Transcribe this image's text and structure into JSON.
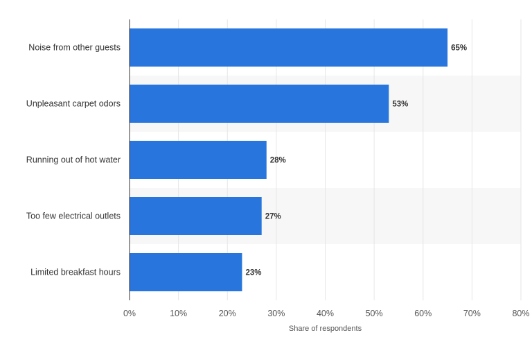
{
  "chart_data": {
    "type": "bar",
    "orientation": "horizontal",
    "categories": [
      "Noise from other guests",
      "Unpleasant carpet odors",
      "Running out of hot water",
      "Too few electrical outlets",
      "Limited breakfast hours"
    ],
    "values": [
      65,
      53,
      28,
      27,
      23
    ],
    "data_labels": [
      "65%",
      "53%",
      "28%",
      "27%",
      "23%"
    ],
    "xlabel": "Share of respondents",
    "ylabel": "",
    "title": "",
    "xlim": [
      0,
      80
    ],
    "ticks": [
      0,
      10,
      20,
      30,
      40,
      50,
      60,
      70,
      80
    ],
    "tick_labels": [
      "0%",
      "10%",
      "20%",
      "30%",
      "40%",
      "50%",
      "60%",
      "70%",
      "80%"
    ],
    "grid": "vertical",
    "legend": "none",
    "colors": {
      "bar": "#2876dd",
      "grid": "#e6e6e6",
      "band": "#f7f7f7",
      "axis": "#333333"
    }
  }
}
